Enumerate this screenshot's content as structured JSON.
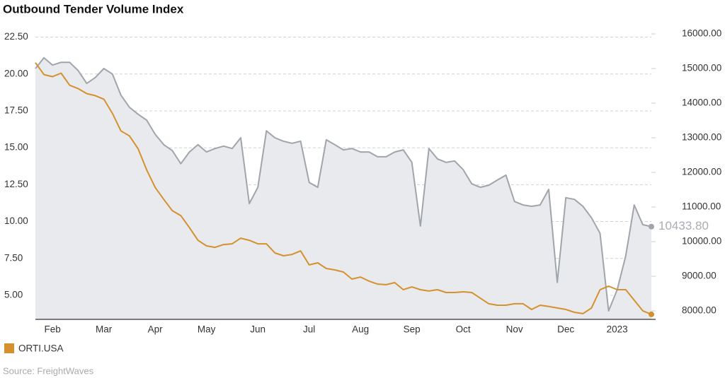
{
  "chart_data": {
    "type": "line",
    "title": "Outbound Tender Volume Index",
    "source": "Source: FreightWaves",
    "categories": [
      null,
      null,
      "Feb",
      null,
      null,
      null,
      null,
      null,
      "Mar",
      null,
      null,
      null,
      null,
      null,
      "Apr",
      null,
      null,
      null,
      null,
      null,
      "May",
      null,
      null,
      null,
      null,
      null,
      "Jun",
      null,
      null,
      null,
      null,
      null,
      "Jul",
      null,
      null,
      null,
      null,
      null,
      "Aug",
      null,
      null,
      null,
      null,
      null,
      "Sep",
      null,
      null,
      null,
      null,
      null,
      "Oct",
      null,
      null,
      null,
      null,
      null,
      "Nov",
      null,
      null,
      null,
      null,
      null,
      "Dec",
      null,
      null,
      null,
      null,
      null,
      "2023",
      null,
      null,
      null,
      null
    ],
    "series": [
      {
        "color": "#a0a5ab",
        "area_color": "#e9eaed",
        "axis": "y2",
        "values": [
          15000,
          15310,
          15100,
          15180,
          15180,
          14940,
          14570,
          14740,
          15000,
          14840,
          14230,
          13880,
          13680,
          13510,
          13100,
          12800,
          12630,
          12250,
          12590,
          12800,
          12590,
          12690,
          12760,
          12690,
          13000,
          11100,
          11570,
          13200,
          13000,
          12900,
          12840,
          12900,
          11710,
          11570,
          12940,
          12800,
          12650,
          12690,
          12590,
          12590,
          12450,
          12450,
          12590,
          12650,
          12290,
          10450,
          12690,
          12390,
          12290,
          12330,
          12080,
          11670,
          11570,
          11630,
          11780,
          11920,
          11160,
          11060,
          11020,
          11060,
          11510,
          8820,
          11270,
          11220,
          11020,
          10690,
          10240,
          8000,
          8610,
          9590,
          11060,
          10490,
          10433.8
        ],
        "value_labels": [
          null,
          null,
          null,
          null,
          null,
          null,
          null,
          null,
          null,
          null,
          null,
          null,
          null,
          null,
          null,
          null,
          null,
          null,
          null,
          null,
          null,
          null,
          null,
          null,
          null,
          null,
          null,
          null,
          null,
          null,
          null,
          null,
          null,
          null,
          null,
          null,
          null,
          null,
          null,
          null,
          null,
          null,
          null,
          null,
          null,
          null,
          null,
          null,
          null,
          null,
          null,
          null,
          null,
          null,
          null,
          null,
          null,
          null,
          null,
          null,
          null,
          null,
          null,
          null,
          null,
          null,
          null,
          null,
          null,
          null,
          null,
          null,
          "10433.80"
        ]
      },
      {
        "name": "ORTI.USA",
        "color": "#d4912e",
        "values": [
          20.77,
          19.96,
          19.82,
          20.06,
          19.24,
          19.01,
          18.67,
          18.53,
          18.29,
          17.33,
          16.14,
          15.8,
          14.94,
          13.51,
          12.31,
          11.5,
          10.74,
          10.4,
          9.59,
          8.73,
          8.35,
          8.25,
          8.44,
          8.49,
          8.87,
          8.73,
          8.49,
          8.49,
          7.87,
          7.68,
          7.77,
          8.01,
          7.06,
          7.2,
          6.82,
          6.72,
          6.58,
          6.1,
          6.24,
          5.96,
          5.76,
          5.72,
          5.86,
          5.38,
          5.57,
          5.38,
          5.29,
          5.38,
          5.19,
          5.19,
          5.24,
          5.19,
          4.81,
          4.43,
          4.33,
          4.33,
          4.43,
          4.43,
          4.04,
          4.33,
          4.24,
          4.14,
          4.04,
          3.85,
          3.76,
          4.14,
          5.38,
          5.62,
          5.38,
          5.38,
          4.67,
          3.95,
          3.71
        ]
      }
    ],
    "ylim": [
      3.37,
      23.1
    ],
    "yticks": [
      {
        "value": 5,
        "label": "5.00"
      },
      {
        "value": 7.5,
        "label": "7.50"
      },
      {
        "value": 10,
        "label": "10.00"
      },
      {
        "value": 12.5,
        "label": "12.50"
      },
      {
        "value": 15,
        "label": "15.00"
      },
      {
        "value": 17.5,
        "label": "17.50"
      },
      {
        "value": 20,
        "label": "20.00"
      },
      {
        "value": 22.5,
        "label": "22.50"
      }
    ],
    "y2lim": [
      7755,
      16163
    ],
    "y2ticks": [
      {
        "value": 8000,
        "label": "8000.00"
      },
      {
        "value": 9000,
        "label": "9000.00"
      },
      {
        "value": 10000,
        "label": "10000.00"
      },
      {
        "value": 11000,
        "label": "11000.00"
      },
      {
        "value": 12000,
        "label": "12000.00"
      },
      {
        "value": 13000,
        "label": "13000.00"
      },
      {
        "value": 14000,
        "label": "14000.00"
      },
      {
        "value": 15000,
        "label": "15000.00"
      },
      {
        "value": 16000,
        "label": "16000.00"
      }
    ],
    "grid": true,
    "legend": "bottom-left"
  }
}
